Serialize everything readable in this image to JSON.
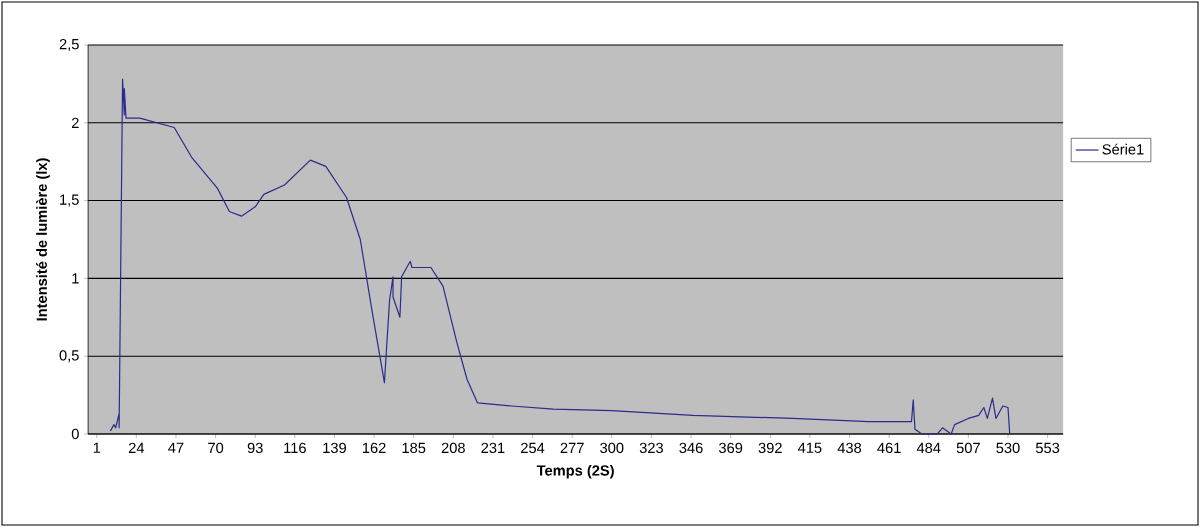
{
  "chart_data": {
    "type": "line",
    "xlabel": "Temps (2S)",
    "ylabel": "Intensité de lumière (lx)",
    "x": [
      9,
      11,
      12,
      14,
      14,
      16,
      17,
      17,
      18,
      26,
      36,
      46,
      56,
      71,
      78,
      85,
      93,
      98,
      110,
      125,
      134,
      146,
      154,
      161,
      168,
      171,
      173,
      173,
      177,
      178,
      183,
      184,
      195,
      202,
      210,
      216,
      222,
      242,
      266,
      300,
      347,
      405,
      449,
      470,
      474,
      475,
      476,
      480,
      489,
      492,
      497,
      499,
      507,
      513,
      516,
      518,
      521,
      523,
      527,
      530,
      531
    ],
    "series": [
      {
        "name": "Série1",
        "color": "#2b2b8c",
        "values": [
          0.02,
          0.06,
          0.04,
          0.13,
          0.04,
          2.28,
          2.05,
          2.22,
          2.03,
          2.03,
          2.0,
          1.97,
          1.78,
          1.58,
          1.43,
          1.4,
          1.46,
          1.54,
          1.6,
          1.76,
          1.72,
          1.52,
          1.25,
          0.78,
          0.33,
          0.86,
          1.01,
          0.88,
          0.75,
          1.01,
          1.11,
          1.07,
          1.07,
          0.95,
          0.59,
          0.35,
          0.2,
          0.18,
          0.16,
          0.15,
          0.12,
          0.1,
          0.08,
          0.08,
          0.08,
          0.22,
          0.03,
          0.0,
          0.0,
          0.04,
          0.0,
          0.06,
          0.1,
          0.12,
          0.17,
          0.1,
          0.23,
          0.1,
          0.18,
          0.17,
          0.0
        ]
      }
    ],
    "xlim": [
      -4,
      562
    ],
    "xticks": [
      1,
      24,
      47,
      70,
      93,
      116,
      139,
      162,
      185,
      208,
      231,
      254,
      277,
      300,
      323,
      346,
      369,
      392,
      415,
      438,
      461,
      484,
      507,
      530,
      553
    ],
    "ylim": [
      0,
      2.5
    ],
    "yticks": [
      0,
      {
        "value": 0.5,
        "label": "0,5"
      },
      1,
      {
        "value": 1.5,
        "label": "1,5"
      },
      2,
      {
        "value": 2.5,
        "label": "2,5"
      }
    ],
    "grid": "y",
    "legend": "right",
    "marker": "none",
    "line_style": "solid"
  }
}
